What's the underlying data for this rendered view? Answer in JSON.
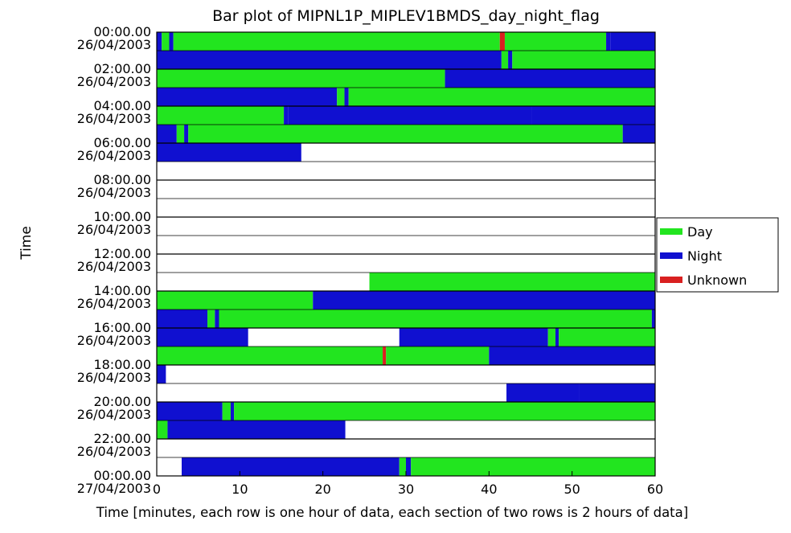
{
  "chart_data": {
    "type": "bar",
    "title": "Bar plot of MIPNL1P_MIPLEV1BMDS_day_night_flag",
    "xlabel": "Time [minutes, each row is one hour of data, each section of two rows is 2 hours of data]",
    "ylabel": "Time",
    "xlim": [
      0,
      60
    ],
    "x_ticks": [
      "0",
      "10",
      "20",
      "30",
      "40",
      "50",
      "60"
    ],
    "legend": {
      "placement": "right",
      "entries": [
        {
          "name": "Day",
          "color": "#22e51f"
        },
        {
          "name": "Night",
          "color": "#1010d0"
        },
        {
          "name": "Unknown",
          "color": "#d92020"
        }
      ]
    },
    "y_ticks": [
      {
        "time": "00:00.00",
        "date": "26/04/2003"
      },
      {
        "time": "02:00.00",
        "date": "26/04/2003"
      },
      {
        "time": "04:00.00",
        "date": "26/04/2003"
      },
      {
        "time": "06:00.00",
        "date": "26/04/2003"
      },
      {
        "time": "08:00.00",
        "date": "26/04/2003"
      },
      {
        "time": "10:00.00",
        "date": "26/04/2003"
      },
      {
        "time": "12:00.00",
        "date": "26/04/2003"
      },
      {
        "time": "14:00.00",
        "date": "26/04/2003"
      },
      {
        "time": "16:00.00",
        "date": "26/04/2003"
      },
      {
        "time": "18:00.00",
        "date": "26/04/2003"
      },
      {
        "time": "20:00.00",
        "date": "26/04/2003"
      },
      {
        "time": "22:00.00",
        "date": "26/04/2003"
      },
      {
        "time": "00:00.00",
        "date": "27/04/2003"
      }
    ],
    "rows": [
      {
        "segments": [
          [
            0,
            0.6,
            "Night"
          ],
          [
            0.6,
            1.5,
            "Day"
          ],
          [
            1.5,
            2,
            "Night"
          ],
          [
            2,
            41.3,
            "Day"
          ],
          [
            41.3,
            41.9,
            "Unknown"
          ],
          [
            41.9,
            54.1,
            "Day"
          ],
          [
            54.1,
            54.6,
            "Night"
          ],
          [
            54.6,
            60,
            "Night"
          ]
        ]
      },
      {
        "segments": [
          [
            0,
            41.5,
            "Night"
          ],
          [
            41.5,
            42.3,
            "Day"
          ],
          [
            42.3,
            42.8,
            "Night"
          ],
          [
            42.8,
            60,
            "Day"
          ]
        ]
      },
      {
        "segments": [
          [
            0,
            34.7,
            "Day"
          ],
          [
            34.7,
            60,
            "Night"
          ]
        ]
      },
      {
        "segments": [
          [
            0,
            21.7,
            "Night"
          ],
          [
            21.7,
            22.6,
            "Day"
          ],
          [
            22.6,
            23.1,
            "Night"
          ],
          [
            23.1,
            60,
            "Day"
          ]
        ]
      },
      {
        "segments": [
          [
            0,
            15.3,
            "Day"
          ],
          [
            15.3,
            15.8,
            "Night"
          ],
          [
            15.8,
            45.1,
            "Night"
          ],
          [
            45.1,
            60,
            "Night"
          ]
        ]
      },
      {
        "segments": [
          [
            0,
            2.4,
            "Night"
          ],
          [
            2.4,
            3.3,
            "Day"
          ],
          [
            3.3,
            3.8,
            "Night"
          ],
          [
            3.8,
            56.1,
            "Day"
          ],
          [
            56.1,
            60,
            "Night"
          ]
        ]
      },
      {
        "segments": [
          [
            0,
            17.4,
            "Night"
          ]
        ]
      },
      {
        "segments": []
      },
      {
        "segments": []
      },
      {
        "segments": []
      },
      {
        "segments": []
      },
      {
        "segments": []
      },
      {
        "segments": []
      },
      {
        "segments": [
          [
            25.6,
            60,
            "Day"
          ]
        ]
      },
      {
        "segments": [
          [
            0,
            18.8,
            "Day"
          ],
          [
            18.8,
            60,
            "Night"
          ]
        ]
      },
      {
        "segments": [
          [
            0,
            6.1,
            "Night"
          ],
          [
            6.1,
            7,
            "Day"
          ],
          [
            7,
            7.5,
            "Night"
          ],
          [
            7.5,
            59.6,
            "Day"
          ],
          [
            59.6,
            60,
            "Night"
          ]
        ]
      },
      {
        "segments": [
          [
            0,
            11,
            "Night"
          ],
          [
            29.2,
            47.1,
            "Night"
          ],
          [
            47.1,
            48,
            "Day"
          ],
          [
            48,
            48.4,
            "Night"
          ],
          [
            48.4,
            60,
            "Day"
          ]
        ]
      },
      {
        "segments": [
          [
            0,
            27.2,
            "Day"
          ],
          [
            27.2,
            27.6,
            "Unknown"
          ],
          [
            27.6,
            40,
            "Day"
          ],
          [
            40,
            60,
            "Night"
          ]
        ]
      },
      {
        "segments": [
          [
            0,
            1.1,
            "Night"
          ]
        ]
      },
      {
        "segments": [
          [
            42.1,
            50.9,
            "Night"
          ],
          [
            50.9,
            60,
            "Night"
          ]
        ]
      },
      {
        "segments": [
          [
            0,
            7.9,
            "Night"
          ],
          [
            7.9,
            8.9,
            "Day"
          ],
          [
            8.9,
            9.3,
            "Night"
          ],
          [
            9.3,
            60,
            "Day"
          ]
        ]
      },
      {
        "segments": [
          [
            0,
            1.3,
            "Day"
          ],
          [
            1.3,
            22.7,
            "Night"
          ]
        ]
      },
      {
        "segments": []
      },
      {
        "segments": [
          [
            3,
            29.2,
            "Night"
          ],
          [
            29.2,
            30,
            "Day"
          ],
          [
            30,
            30.6,
            "Night"
          ],
          [
            30.6,
            60,
            "Day"
          ]
        ]
      }
    ]
  }
}
